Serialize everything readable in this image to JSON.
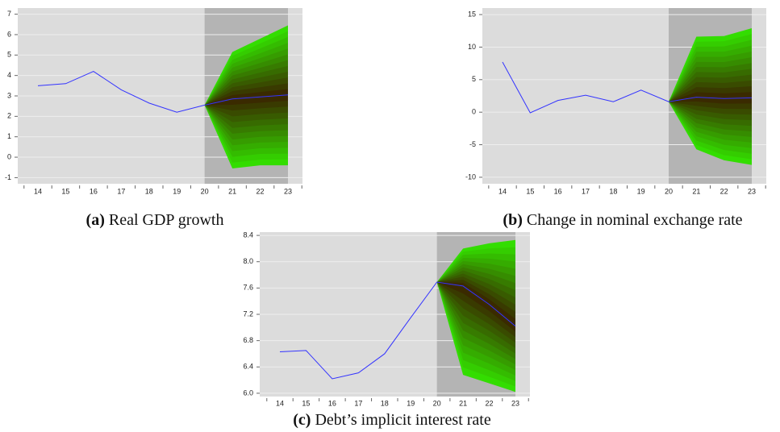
{
  "chart_data": [
    {
      "type": "fan",
      "caption_label": "(a)",
      "caption": "Real GDP growth",
      "categories": [
        "14",
        "15",
        "16",
        "17",
        "18",
        "19",
        "20",
        "21",
        "22",
        "23"
      ],
      "series": [
        {
          "name": "line",
          "color": "#3333ff",
          "values": [
            3.5,
            3.6,
            4.2,
            3.3,
            2.65,
            2.2,
            2.55,
            2.85,
            2.95,
            3.05
          ]
        },
        {
          "name": "upper",
          "color": "#33dd00",
          "values": [
            null,
            null,
            null,
            null,
            null,
            null,
            2.55,
            5.15,
            5.8,
            6.45
          ]
        },
        {
          "name": "lower",
          "color": "#33dd00",
          "values": [
            null,
            null,
            null,
            null,
            null,
            null,
            2.55,
            -0.55,
            -0.4,
            -0.4
          ]
        }
      ],
      "ylim": [
        -1.3,
        7.3
      ],
      "yticks": [
        -1,
        0,
        1,
        2,
        3,
        4,
        5,
        6,
        7
      ]
    },
    {
      "type": "fan",
      "caption_label": "(b)",
      "caption": "Change in nominal exchange rate",
      "categories": [
        "14",
        "15",
        "16",
        "17",
        "18",
        "19",
        "20",
        "21",
        "22",
        "23"
      ],
      "series": [
        {
          "name": "line",
          "color": "#3333ff",
          "values": [
            7.7,
            -0.1,
            1.8,
            2.6,
            1.6,
            3.4,
            1.6,
            2.3,
            2.1,
            2.2
          ]
        },
        {
          "name": "upper",
          "color": "#33dd00",
          "values": [
            null,
            null,
            null,
            null,
            null,
            null,
            1.6,
            11.6,
            11.7,
            12.9
          ]
        },
        {
          "name": "lower",
          "color": "#33dd00",
          "values": [
            null,
            null,
            null,
            null,
            null,
            null,
            1.6,
            -5.7,
            -7.4,
            -8.1
          ]
        }
      ],
      "ylim": [
        -11,
        16
      ],
      "yticks": [
        -10,
        -5,
        0,
        5,
        10,
        15
      ]
    },
    {
      "type": "fan",
      "caption_label": "(c)",
      "caption": "Debt’s implicit interest rate",
      "categories": [
        "14",
        "15",
        "16",
        "17",
        "18",
        "19",
        "20",
        "21",
        "22",
        "23"
      ],
      "series": [
        {
          "name": "line",
          "color": "#3333ff",
          "values": [
            6.63,
            6.65,
            6.22,
            6.31,
            6.6,
            7.15,
            7.69,
            7.63,
            7.35,
            7.02
          ]
        },
        {
          "name": "upper",
          "color": "#33dd00",
          "values": [
            null,
            null,
            null,
            null,
            null,
            null,
            7.69,
            8.2,
            8.28,
            8.33
          ]
        },
        {
          "name": "lower",
          "color": "#33dd00",
          "values": [
            null,
            null,
            null,
            null,
            null,
            null,
            7.69,
            6.28,
            6.15,
            6.02
          ]
        }
      ],
      "ylim": [
        5.95,
        8.45
      ],
      "yticks": [
        {
          "value": 6,
          "label": "6.0"
        },
        6.4,
        6.8,
        7.2,
        7.6,
        {
          "value": 8,
          "label": "8.0"
        },
        8.4
      ]
    }
  ]
}
